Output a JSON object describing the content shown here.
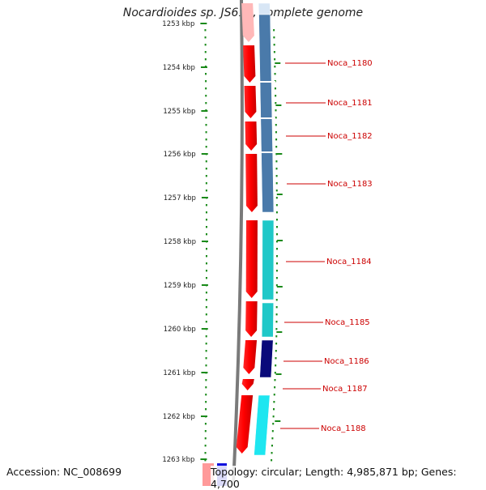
{
  "title": "Nocardioides sp. JS614, complete genome",
  "footer": {
    "accession": "Accession: NC_008699",
    "summary": "Topology: circular; Length: 4,985,871 bp; Genes: 4,700"
  },
  "ruler": {
    "unit": "kbp",
    "ticks": [
      "1253 kbp",
      "1254 kbp",
      "1255 kbp",
      "1256 kbp",
      "1257 kbp",
      "1258 kbp",
      "1259 kbp",
      "1260 kbp",
      "1261 kbp",
      "1262 kbp",
      "1263 kbp"
    ]
  },
  "genes": [
    {
      "label": "Noca_1180",
      "color": "#4a7aaa"
    },
    {
      "label": "Noca_1181",
      "color": "#4a7aaa"
    },
    {
      "label": "Noca_1182",
      "color": "#4a7aaa"
    },
    {
      "label": "Noca_1183",
      "color": "#4a7aaa"
    },
    {
      "label": "Noca_1184",
      "color": "#1fc8c8"
    },
    {
      "label": "Noca_1185",
      "color": "#1fc8c8"
    },
    {
      "label": "Noca_1186",
      "color": "#0a0a7a"
    },
    {
      "label": "Noca_1187",
      "color": "#ffffff"
    },
    {
      "label": "Noca_1188",
      "color": "#1ee6f0"
    }
  ],
  "colors": {
    "cds_strand": "#ff0000",
    "label_text": "#cc0000",
    "tick": "#1a8a1a",
    "backbone": "#808080"
  }
}
